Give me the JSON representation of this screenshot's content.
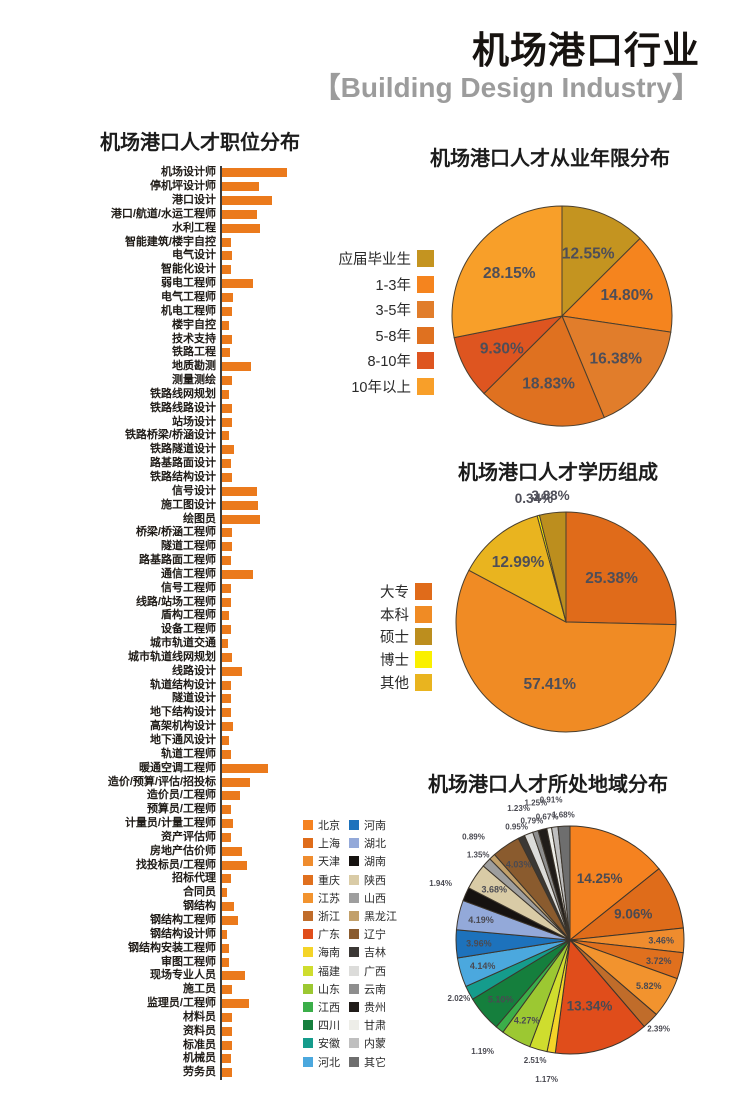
{
  "page": {
    "title": "机场港口行业",
    "subtitle": "【Building Design Industry】"
  },
  "chart_data": [
    {
      "id": "positions",
      "type": "bar",
      "title": "机场港口人才职位分布",
      "orientation": "horizontal",
      "xlabel": "",
      "ylabel": "",
      "value_note": "relative bar lengths, no numeric axis shown (scaled 0-100)",
      "bar_color": "#EB7A1C",
      "categories": [
        "机场设计师",
        "停机坪设计师",
        "港口设计",
        "港口/航道/水运工程师",
        "水利工程",
        "智能建筑/楼宇自控",
        "电气设计",
        "智能化设计",
        "弱电工程师",
        "电气工程师",
        "机电工程师",
        "楼宇自控",
        "技术支持",
        "铁路工程",
        "地质勘测",
        "测量测绘",
        "铁路线网规划",
        "铁路线路设计",
        "站场设计",
        "铁路桥梁/桥涵设计",
        "铁路隧道设计",
        "路基路面设计",
        "铁路结构设计",
        "信号设计",
        "施工图设计",
        "绘图员",
        "桥梁/桥涵工程师",
        "隧道工程师",
        "路基路面工程师",
        "通信工程师",
        "信号工程师",
        "线路/站场工程师",
        "盾构工程师",
        "设备工程师",
        "城市轨道交通",
        "城市轨道线网规划",
        "线路设计",
        "轨道结构设计",
        "隧道设计",
        "地下结构设计",
        "高架机构设计",
        "地下通风设计",
        "轨道工程师",
        "暖通空调工程师",
        "造价/预算/评估/招投标",
        "造价员/工程师",
        "预算员/工程师",
        "计量员/计量工程师",
        "资产评估师",
        "房地产估价师",
        "找投标员/工程师",
        "招标代理",
        "合同员",
        "钢结构",
        "钢结构工程师",
        "钢结构设计师",
        "钢结构安装工程师",
        "审图工程师",
        "现场专业人员",
        "施工员",
        "监理员/工程师",
        "材料员",
        "资料员",
        "标准员",
        "机械员",
        "劳务员"
      ],
      "values": [
        100,
        57,
        77,
        54,
        58,
        14,
        15,
        14,
        47,
        17,
        15,
        11,
        15,
        12,
        44,
        15,
        11,
        15,
        15,
        11,
        18,
        13,
        16,
        53,
        55,
        59,
        16,
        16,
        13,
        47,
        14,
        13,
        11,
        13,
        9,
        16,
        31,
        13,
        14,
        14,
        17,
        11,
        13,
        71,
        43,
        28,
        13,
        17,
        14,
        30,
        38,
        13,
        8,
        19,
        24,
        8,
        11,
        10,
        36,
        15,
        41,
        16,
        16,
        15,
        13,
        16
      ]
    },
    {
      "id": "experience",
      "type": "pie",
      "title": "机场港口人才从业年限分布",
      "legend_position": "left",
      "label_format": "percent",
      "slices": [
        {
          "label": "应届毕业生",
          "value": 12.55,
          "color": "#C49420"
        },
        {
          "label": "1-3年",
          "value": 14.8,
          "color": "#F5841E"
        },
        {
          "label": "3-5年",
          "value": 16.38,
          "color": "#E17D2B"
        },
        {
          "label": "5-8年",
          "value": 18.83,
          "color": "#DF7120"
        },
        {
          "label": "8-10年",
          "value": 9.3,
          "color": "#DE5520"
        },
        {
          "label": "10年以上",
          "value": 28.15,
          "color": "#F89F29"
        }
      ]
    },
    {
      "id": "education",
      "type": "pie",
      "title": "机场港口人才学历组成",
      "legend_position": "left",
      "label_format": "percent",
      "legend_order": [
        "大专",
        "本科",
        "硕士",
        "博士",
        "其他"
      ],
      "slices": [
        {
          "label": "大专",
          "value": 25.38,
          "color": "#E06B1A"
        },
        {
          "label": "本科",
          "value": 57.41,
          "color": "#F08B24"
        },
        {
          "label": "其他",
          "value": 12.99,
          "color": "#E9B41F"
        },
        {
          "label": "博士",
          "value": 0.34,
          "color": "#FAF000"
        },
        {
          "label": "硕士",
          "value": 3.88,
          "color": "#BC8E1E"
        }
      ]
    },
    {
      "id": "region",
      "type": "pie",
      "title": "机场港口人才所处地域分布",
      "legend_position": "left",
      "legend_columns": 2,
      "label_format": "percent",
      "slices": [
        {
          "label": "北京",
          "value": 14.25,
          "color": "#F58220"
        },
        {
          "label": "上海",
          "value": 9.06,
          "color": "#DF6C1A"
        },
        {
          "label": "天津",
          "value": 3.46,
          "color": "#EF8C2E"
        },
        {
          "label": "重庆",
          "value": 3.72,
          "color": "#E0701E"
        },
        {
          "label": "江苏",
          "value": 5.82,
          "color": "#F2932E"
        },
        {
          "label": "浙江",
          "value": 2.39,
          "color": "#C06C2A"
        },
        {
          "label": "广东",
          "value": 13.34,
          "color": "#E04D1B"
        },
        {
          "label": "海南",
          "value": 1.17,
          "color": "#F4D428"
        },
        {
          "label": "福建",
          "value": 2.51,
          "color": "#CFDD2E"
        },
        {
          "label": "山东",
          "value": 4.27,
          "color": "#9CC832"
        },
        {
          "label": "江西",
          "value": 1.19,
          "color": "#3BAE49"
        },
        {
          "label": "四川",
          "value": 5.1,
          "color": "#157F3D"
        },
        {
          "label": "安徽",
          "value": 2.02,
          "color": "#159C8C"
        },
        {
          "label": "河北",
          "value": 4.14,
          "color": "#4BA8DE"
        },
        {
          "label": "河南",
          "value": 3.96,
          "color": "#1D72BC"
        },
        {
          "label": "湖北",
          "value": 4.19,
          "color": "#93A9D9"
        },
        {
          "label": "湖南",
          "value": 1.94,
          "color": "#161210"
        },
        {
          "label": "陕西",
          "value": 3.68,
          "color": "#D9CBA6"
        },
        {
          "label": "山西",
          "value": 1.35,
          "color": "#9E9E9E"
        },
        {
          "label": "黑龙江",
          "value": 0.89,
          "color": "#C2A06A"
        },
        {
          "label": "辽宁",
          "value": 4.03,
          "color": "#8A5B2E"
        },
        {
          "label": "吉林",
          "value": 0.95,
          "color": "#3B3835"
        },
        {
          "label": "广西",
          "value": 1.23,
          "color": "#DCDCDA"
        },
        {
          "label": "云南",
          "value": 0.79,
          "color": "#8E8E8E"
        },
        {
          "label": "贵州",
          "value": 1.25,
          "color": "#201C19"
        },
        {
          "label": "甘肃",
          "value": 0.67,
          "color": "#EDEDE8"
        },
        {
          "label": "内蒙",
          "value": 0.91,
          "color": "#BFBFBF"
        },
        {
          "label": "其它",
          "value": 1.68,
          "color": "#6E6E6E"
        }
      ]
    }
  ]
}
